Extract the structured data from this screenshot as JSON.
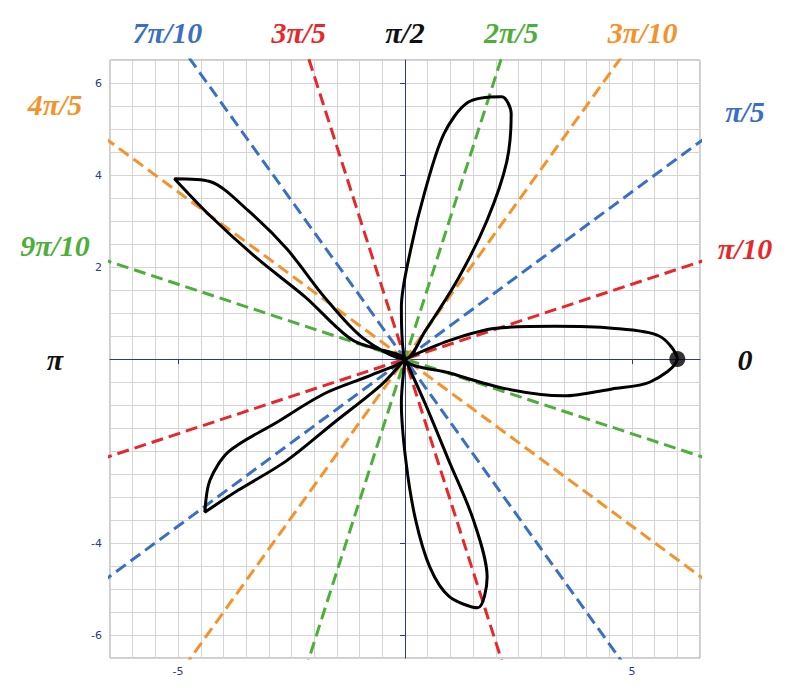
{
  "chart_data": {
    "type": "line",
    "xlim": [
      -6.5,
      6.5
    ],
    "ylim": [
      -6.5,
      6.5
    ],
    "xticks": [
      -5,
      5
    ],
    "yticks": [
      -6,
      -4,
      2,
      4,
      6
    ],
    "grid": true,
    "series": [
      {
        "type": "line",
        "color": "#000000",
        "values": [
          [
            0,
            0
          ],
          [
            0.97,
            0.4
          ],
          [
            2.0,
            0.67
          ],
          [
            3.3,
            0.71
          ],
          [
            4.56,
            0.67
          ],
          [
            5.6,
            0.5
          ],
          [
            6.0,
            0
          ],
          [
            5.4,
            -0.5
          ],
          [
            4.56,
            -0.65
          ],
          [
            3.5,
            -0.8
          ],
          [
            2.24,
            -0.65
          ],
          [
            0.97,
            -0.3
          ],
          [
            0,
            0
          ],
          [
            -0.08,
            1.13
          ],
          [
            0.13,
            2.4
          ],
          [
            0.44,
            3.65
          ],
          [
            0.86,
            4.9
          ],
          [
            1.39,
            5.58
          ],
          [
            2.13,
            5.7
          ],
          [
            2.34,
            5.33
          ],
          [
            2.24,
            4.28
          ],
          [
            1.81,
            3.02
          ],
          [
            1.18,
            1.76
          ],
          [
            0.44,
            0.6
          ],
          [
            0,
            0
          ],
          [
            -0.93,
            0.46
          ],
          [
            -1.77,
            1.34
          ],
          [
            -2.6,
            2.39
          ],
          [
            -3.46,
            3.23
          ],
          [
            -4.3,
            3.86
          ],
          [
            -5.08,
            3.92
          ],
          [
            -4.3,
            3.12
          ],
          [
            -3.25,
            2.18
          ],
          [
            -2.19,
            1.34
          ],
          [
            -1.14,
            0.4
          ],
          [
            0,
            0
          ],
          [
            -0.72,
            -0.34
          ],
          [
            -1.77,
            -0.75
          ],
          [
            -2.83,
            -1.38
          ],
          [
            -3.88,
            -2.01
          ],
          [
            -4.3,
            -2.64
          ],
          [
            -4.41,
            -3.33
          ],
          [
            -3.67,
            -2.85
          ],
          [
            -2.62,
            -2.22
          ],
          [
            -1.56,
            -1.38
          ],
          [
            -0.51,
            -0.55
          ],
          [
            0,
            0
          ],
          [
            -0.08,
            -0.96
          ],
          [
            0.02,
            -2.22
          ],
          [
            0.23,
            -3.48
          ],
          [
            0.55,
            -4.53
          ],
          [
            0.97,
            -5.16
          ],
          [
            1.6,
            -5.41
          ],
          [
            1.81,
            -4.74
          ],
          [
            1.5,
            -3.48
          ],
          [
            0.97,
            -2.22
          ],
          [
            0.44,
            -0.96
          ],
          [
            0,
            0
          ]
        ]
      },
      {
        "type": "scatter",
        "color": "#000000",
        "marker": "circle",
        "values": [
          [
            6.0,
            0
          ]
        ]
      }
    ],
    "angle_labels": [
      {
        "label": "0",
        "angle": 0,
        "color": "#111111"
      },
      {
        "label": "π/10",
        "angle": 0.3142,
        "color": "#e8272a",
        "line_style": "dashed"
      },
      {
        "label": "π/5",
        "angle": 0.6283,
        "color": "#3a6fc4",
        "line_style": "dashed"
      },
      {
        "label": "3π/10",
        "angle": 0.9425,
        "color": "#f5922a",
        "line_style": "dashed"
      },
      {
        "label": "2π/5",
        "angle": 1.2566,
        "color": "#4caf3a",
        "line_style": "dashed"
      },
      {
        "label": "π/2",
        "angle": 1.5708,
        "color": "#111111"
      },
      {
        "label": "3π/5",
        "angle": 1.885,
        "color": "#e8272a",
        "line_style": "dashed"
      },
      {
        "label": "7π/10",
        "angle": 2.1991,
        "color": "#3a6fc4",
        "line_style": "dashed"
      },
      {
        "label": "4π/5",
        "angle": 2.5133,
        "color": "#f5922a",
        "line_style": "dashed"
      },
      {
        "label": "9π/10",
        "angle": 2.8274,
        "color": "#4caf3a",
        "line_style": "dashed"
      },
      {
        "label": "π",
        "angle": 3.1416,
        "color": "#111111"
      }
    ]
  }
}
